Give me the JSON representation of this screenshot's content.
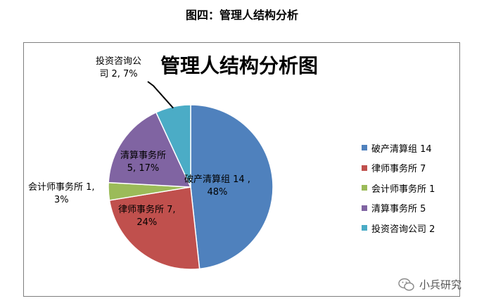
{
  "document": {
    "caption": "图四：管理人结构分析",
    "watermark_text": "小兵研究"
  },
  "chart_data": {
    "type": "pie",
    "title": "管理人结构分析图",
    "slices": [
      {
        "name": "破产清算组",
        "value": 14,
        "percent": "48%",
        "color": "#4F81BD",
        "label_line1": "破产清算组 14 ,",
        "label_line2": "48%",
        "legend": "破产清算组 14"
      },
      {
        "name": "律师事务所",
        "value": 7,
        "percent": "24%",
        "color": "#C0504D",
        "label_line1": "律师事务所 7,",
        "label_line2": "24%",
        "legend": "律师事务所 7"
      },
      {
        "name": "会计师事务所",
        "value": 1,
        "percent": "3%",
        "color": "#9BBB59",
        "label_line1": "会计师事务所 1,",
        "label_line2": "3%",
        "legend": "会计师事务所 1"
      },
      {
        "name": "清算事务所",
        "value": 5,
        "percent": "17%",
        "color": "#8064A2",
        "label_line1": "清算事务所",
        "label_line2": "5, 17%",
        "legend": "清算事务所 5"
      },
      {
        "name": "投资咨询公司",
        "value": 2,
        "percent": "7%",
        "color": "#4BACC6",
        "label_line1": "投资咨询公",
        "label_line2": "司 2, 7%",
        "legend": "投资咨询公司 2"
      }
    ],
    "legend_position": "right"
  }
}
